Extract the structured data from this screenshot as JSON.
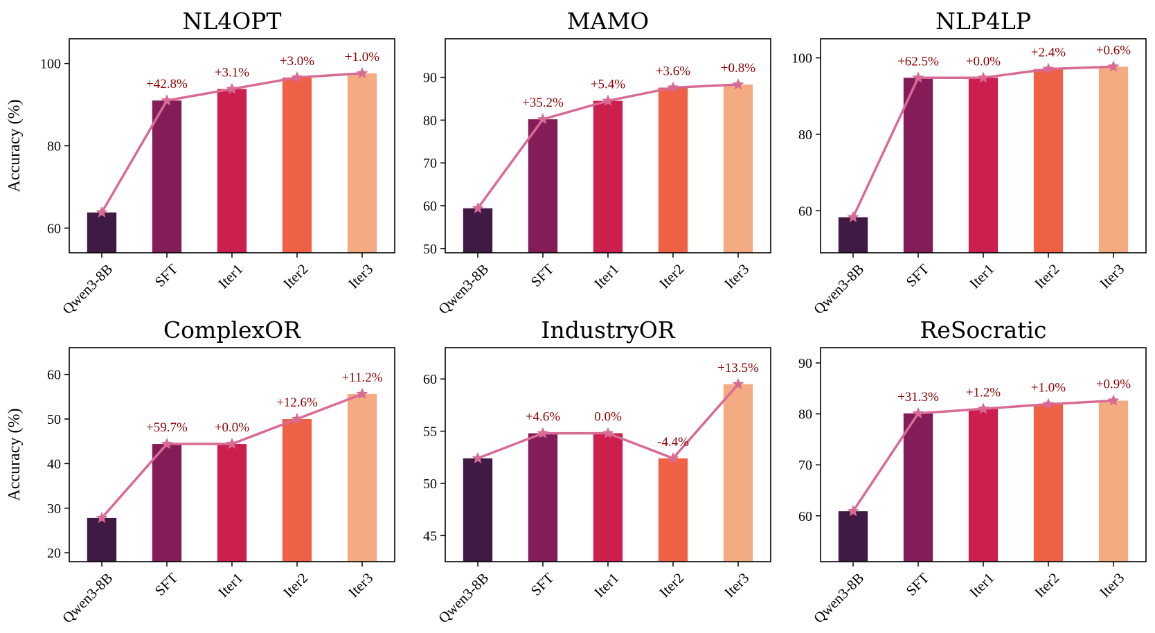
{
  "colors": {
    "bars": [
      "#3f1a42",
      "#841d57",
      "#cc1f4e",
      "#ef6145",
      "#f5ab82"
    ],
    "line": "#d86b95",
    "annotation": "#8b0000"
  },
  "chart_data": [
    {
      "type": "bar",
      "title": "NL4OPT",
      "ylabel": "Accuracy (%)",
      "categories": [
        "Qwen3-8B",
        "SFT",
        "Iter1",
        "Iter2",
        "Iter3"
      ],
      "values": [
        63.8,
        91.0,
        93.8,
        96.6,
        97.6
      ],
      "annotations": [
        "",
        "+42.8%",
        "+3.1%",
        "+3.0%",
        "+1.0%"
      ],
      "ylim": [
        54,
        106
      ],
      "yticks": [
        60,
        80,
        100
      ]
    },
    {
      "type": "bar",
      "title": "MAMO",
      "ylabel": "",
      "categories": [
        "Qwen3-8B",
        "SFT",
        "Iter1",
        "Iter2",
        "Iter3"
      ],
      "values": [
        59.4,
        80.2,
        84.5,
        87.6,
        88.3
      ],
      "annotations": [
        "",
        "+35.2%",
        "+5.4%",
        "+3.6%",
        "+0.8%"
      ],
      "ylim": [
        49,
        99
      ],
      "yticks": [
        50,
        60,
        70,
        80,
        90
      ]
    },
    {
      "type": "bar",
      "title": "NLP4LP",
      "ylabel": "",
      "categories": [
        "Qwen3-8B",
        "SFT",
        "Iter1",
        "Iter2",
        "Iter3"
      ],
      "values": [
        58.3,
        94.8,
        94.8,
        97.1,
        97.7
      ],
      "annotations": [
        "",
        "+62.5%",
        "+0.0%",
        "+2.4%",
        "+0.6%"
      ],
      "ylim": [
        49,
        105
      ],
      "yticks": [
        60,
        80,
        100
      ]
    },
    {
      "type": "bar",
      "title": "ComplexOR",
      "ylabel": "Accuracy (%)",
      "categories": [
        "Qwen3-8B",
        "SFT",
        "Iter1",
        "Iter2",
        "Iter3"
      ],
      "values": [
        27.8,
        44.4,
        44.4,
        50.0,
        55.6
      ],
      "annotations": [
        "",
        "+59.7%",
        "+0.0%",
        "+12.6%",
        "+11.2%"
      ],
      "ylim": [
        18,
        66
      ],
      "yticks": [
        20,
        30,
        40,
        50,
        60
      ]
    },
    {
      "type": "bar",
      "title": "IndustryOR",
      "ylabel": "",
      "categories": [
        "Qwen3-8B",
        "SFT",
        "Iter1",
        "Iter2",
        "Iter3"
      ],
      "values": [
        52.4,
        54.8,
        54.8,
        52.4,
        59.5
      ],
      "annotations": [
        "",
        "+4.6%",
        "0.0%",
        "-4.4%",
        "+13.5%"
      ],
      "ylim": [
        42.5,
        63
      ],
      "yticks": [
        45,
        50,
        55,
        60
      ]
    },
    {
      "type": "bar",
      "title": "ReSocratic",
      "ylabel": "",
      "categories": [
        "Qwen3-8B",
        "SFT",
        "Iter1",
        "Iter2",
        "Iter3"
      ],
      "values": [
        60.9,
        80.1,
        81.0,
        81.9,
        82.6
      ],
      "annotations": [
        "",
        "+31.3%",
        "+1.2%",
        "+1.0%",
        "+0.9%"
      ],
      "ylim": [
        51,
        93
      ],
      "yticks": [
        60,
        70,
        80,
        90
      ]
    }
  ]
}
